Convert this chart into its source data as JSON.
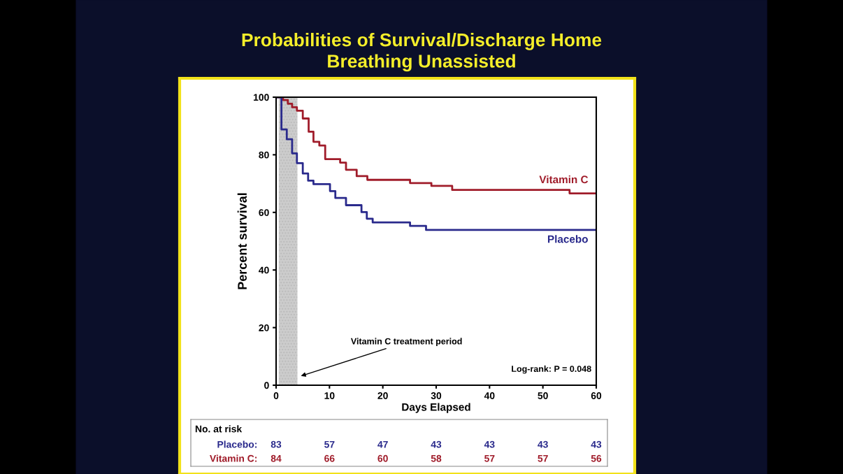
{
  "chart_data": {
    "type": "step",
    "title": "Probabilities of Survival/Discharge Home\nBreathing Unassisted",
    "xlabel": "Days Elapsed",
    "ylabel": "Percent survival",
    "series": [
      {
        "name": "Vitamin C",
        "color": "#a01c2a",
        "x": [
          0,
          1.3,
          2.2,
          3.0,
          3.9,
          5.0,
          6.1,
          7.0,
          8.1,
          9.2,
          12.0,
          13.1,
          15.1,
          17.1,
          25.1,
          29.1,
          33.0,
          55.0,
          60
        ],
        "values": [
          100,
          99,
          97.7,
          96.5,
          95.3,
          92.6,
          88,
          84.5,
          83.2,
          78.5,
          77.3,
          74.8,
          72.6,
          71.3,
          70.2,
          69.2,
          67.8,
          66.6,
          66.6
        ]
      },
      {
        "name": "Placebo",
        "color": "#2a2a8c",
        "x": [
          0,
          1.0,
          2.0,
          3.0,
          3.9,
          5.0,
          6.0,
          7.0,
          10.1,
          11.1,
          13.1,
          16.0,
          17.0,
          18.1,
          25.1,
          28.1,
          60
        ],
        "values": [
          100,
          88.8,
          85.4,
          80.5,
          77.1,
          73.5,
          71,
          69.8,
          67.4,
          65,
          62.5,
          60.1,
          57.8,
          56.5,
          55.3,
          53.9,
          53.9
        ]
      }
    ],
    "xlim": [
      0,
      60
    ],
    "ylim": [
      0,
      100
    ],
    "xticks": [
      0,
      10,
      20,
      30,
      40,
      50,
      60
    ],
    "yticks": [
      0,
      20,
      40,
      60,
      80,
      100
    ],
    "bands": [
      {
        "axis": "x",
        "from": 0.5,
        "to": 4.0,
        "label": "Vitamin C treatment period",
        "color": "#cccccc"
      }
    ],
    "annotations": [
      "Log-rank: P = 0.048",
      "No. at risk",
      "Placebo:",
      "83",
      "57",
      "47",
      "43",
      "43",
      "43",
      "43",
      "Vitamin C:",
      "84",
      "66",
      "60",
      "58",
      "57",
      "57",
      "56"
    ],
    "grid": false,
    "legend": false
  }
}
